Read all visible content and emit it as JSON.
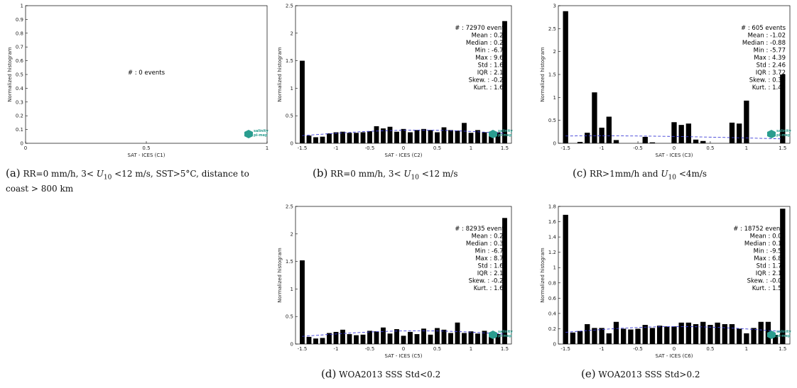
{
  "chart_data": [
    {
      "id": "a",
      "type": "bar",
      "xlabel": "SAT - ICES (C1)",
      "ylabel": "Normalized histogram",
      "xlim": [
        0,
        1
      ],
      "ylim": [
        0,
        1
      ],
      "xticks": [
        "0",
        "0.5",
        "1"
      ],
      "yticks": [
        "0",
        "0.1",
        "0.2",
        "0.3",
        "0.4",
        "0.5",
        "0.6",
        "0.7",
        "0.8",
        "0.9",
        "1"
      ],
      "bins": [],
      "values": [],
      "curve": false,
      "stats": [
        "# : 0 events"
      ],
      "caption_label": "(a)",
      "caption_text": "RR=0 mm/h, 3< U10 <12 m/s, SST>5°C, distance to coast > 800 km"
    },
    {
      "id": "b",
      "type": "bar",
      "xlabel": "SAT - ICES (C2)",
      "ylabel": "Normalized histogram",
      "xlim": [
        -1.6,
        1.6
      ],
      "ylim": [
        0,
        2.5
      ],
      "xticks": [
        "-1.5",
        "-1",
        "-0.5",
        "0",
        "0.5",
        "1",
        "1.5"
      ],
      "yticks": [
        "0",
        "0.5",
        "1",
        "1.5",
        "2",
        "2.5"
      ],
      "bins": [
        -1.5,
        -1.4,
        -1.3,
        -1.2,
        -1.1,
        -1.0,
        -0.9,
        -0.8,
        -0.7,
        -0.6,
        -0.5,
        -0.4,
        -0.3,
        -0.2,
        -0.1,
        0.0,
        0.1,
        0.2,
        0.3,
        0.4,
        0.5,
        0.6,
        0.7,
        0.8,
        0.9,
        1.0,
        1.1,
        1.2,
        1.3,
        1.4,
        1.5
      ],
      "values": [
        1.5,
        0.14,
        0.11,
        0.12,
        0.18,
        0.2,
        0.21,
        0.19,
        0.19,
        0.2,
        0.22,
        0.31,
        0.27,
        0.3,
        0.21,
        0.26,
        0.2,
        0.24,
        0.26,
        0.24,
        0.2,
        0.29,
        0.24,
        0.23,
        0.37,
        0.19,
        0.24,
        0.2,
        0.21,
        0.2,
        2.22
      ],
      "curve": true,
      "stats": [
        "# : 72970 events",
        "Mean : 0.23",
        "Median : 0.26",
        "Min : -6.78",
        "Max : 9.67",
        "Std : 1.67",
        "IQR : 2.10",
        "Skew. : -0.20",
        "Kurt. : 1.62"
      ],
      "caption_label": "(b)",
      "caption_text": "RR=0 mm/h, 3< U10 <12 m/s"
    },
    {
      "id": "c",
      "type": "bar",
      "xlabel": "SAT - ICES (C3)",
      "ylabel": "Normalized histogram",
      "xlim": [
        -1.6,
        1.6
      ],
      "ylim": [
        0,
        3
      ],
      "xticks": [
        "-1.5",
        "-1",
        "-0.5",
        "0",
        "0.5",
        "1",
        "1.5"
      ],
      "yticks": [
        "0",
        "0.5",
        "1",
        "1.5",
        "2",
        "2.5",
        "3"
      ],
      "bins": [
        -1.5,
        -1.4,
        -1.3,
        -1.2,
        -1.1,
        -1.0,
        -0.9,
        -0.8,
        -0.7,
        -0.6,
        -0.5,
        -0.4,
        -0.3,
        -0.2,
        -0.1,
        0.0,
        0.1,
        0.2,
        0.3,
        0.4,
        0.5,
        0.6,
        0.7,
        0.8,
        0.9,
        1.0,
        1.1,
        1.2,
        1.3,
        1.4,
        1.5
      ],
      "values": [
        2.88,
        0,
        0.03,
        0.23,
        1.11,
        0.34,
        0.58,
        0.07,
        0,
        0,
        0,
        0.14,
        0.02,
        0,
        0,
        0.46,
        0.4,
        0.43,
        0.08,
        0.05,
        0,
        0,
        0,
        0.45,
        0.43,
        0.93,
        0,
        0,
        0,
        0,
        1.5
      ],
      "curve": true,
      "stats": [
        "# : 605 events",
        "Mean : -1.02",
        "Median : -0.88",
        "Min : -5.77",
        "Max : 4.39",
        "Std : 2.46",
        "IQR : 3.72",
        "Skew. : 0.34",
        "Kurt. : 1.49"
      ],
      "caption_label": "(c)",
      "caption_text": "RR>1mm/h and U10 <4m/s"
    },
    {
      "id": "d",
      "type": "bar",
      "xlabel": "SAT - ICES (C5)",
      "ylabel": "Normalized histogram",
      "xlim": [
        -1.6,
        1.6
      ],
      "ylim": [
        0,
        2.5
      ],
      "xticks": [
        "-1.5",
        "-1",
        "-0.5",
        "0",
        "0.5",
        "1",
        "1.5"
      ],
      "yticks": [
        "0",
        "0.5",
        "1",
        "1.5",
        "2",
        "2.5"
      ],
      "bins": [
        -1.5,
        -1.4,
        -1.3,
        -1.2,
        -1.1,
        -1.0,
        -0.9,
        -0.8,
        -0.7,
        -0.6,
        -0.5,
        -0.4,
        -0.3,
        -0.2,
        -0.1,
        0.0,
        0.1,
        0.2,
        0.3,
        0.4,
        0.5,
        0.6,
        0.7,
        0.8,
        0.9,
        1.0,
        1.1,
        1.2,
        1.3,
        1.4,
        1.5
      ],
      "values": [
        1.52,
        0.13,
        0.1,
        0.11,
        0.2,
        0.22,
        0.26,
        0.18,
        0.16,
        0.17,
        0.24,
        0.23,
        0.3,
        0.19,
        0.27,
        0.15,
        0.22,
        0.18,
        0.28,
        0.17,
        0.29,
        0.26,
        0.2,
        0.39,
        0.2,
        0.23,
        0.19,
        0.24,
        0.21,
        0.18,
        2.29
      ],
      "curve": true,
      "stats": [
        "# : 82935 events",
        "Mean : 0.23",
        "Median : 0.30",
        "Min : -6.72",
        "Max : 8.76",
        "Std : 1.66",
        "IQR : 2.17",
        "Skew. : -0.22",
        "Kurt. : 1.61"
      ],
      "caption_label": "(d)",
      "caption_text": "WOA2013 SSS Std<0.2"
    },
    {
      "id": "e",
      "type": "bar",
      "xlabel": "SAT - ICES (C6)",
      "ylabel": "Normalized histogram",
      "xlim": [
        -1.6,
        1.6
      ],
      "ylim": [
        0,
        1.8
      ],
      "xticks": [
        "-1.5",
        "-1",
        "-0.5",
        "0",
        "0.5",
        "1",
        "1.5"
      ],
      "yticks": [
        "0",
        "0.2",
        "0.4",
        "0.6",
        "0.8",
        "1",
        "1.2",
        "1.4",
        "1.6",
        "1.8"
      ],
      "bins": [
        -1.5,
        -1.4,
        -1.3,
        -1.2,
        -1.1,
        -1.0,
        -0.9,
        -0.8,
        -0.7,
        -0.6,
        -0.5,
        -0.4,
        -0.3,
        -0.2,
        -0.1,
        0.0,
        0.1,
        0.2,
        0.3,
        0.4,
        0.5,
        0.6,
        0.7,
        0.8,
        0.9,
        1.0,
        1.1,
        1.2,
        1.3,
        1.4,
        1.5
      ],
      "values": [
        1.69,
        0.15,
        0.17,
        0.26,
        0.21,
        0.21,
        0.14,
        0.29,
        0.2,
        0.19,
        0.2,
        0.25,
        0.21,
        0.24,
        0.23,
        0.23,
        0.28,
        0.28,
        0.26,
        0.29,
        0.25,
        0.28,
        0.26,
        0.26,
        0.2,
        0.14,
        0.21,
        0.29,
        0.29,
        0.12,
        1.77
      ],
      "curve": true,
      "stats": [
        "# : 18752 events",
        "Mean : 0.06",
        "Median : 0.10",
        "Min : -9.50",
        "Max : 6.80",
        "Std : 1.75",
        "IQR : 2.18",
        "Skew. : -0.08",
        "Kurt. : 1.58"
      ],
      "caption_label": "(e)",
      "caption_text": "WOA2013 SSS Std>0.2"
    }
  ],
  "logo": {
    "line1": "salinity",
    "line2": "pi-mep"
  },
  "colors": {
    "bar": "#000000",
    "curve": "#3d3dd6",
    "logo": "#2a9d8f"
  }
}
